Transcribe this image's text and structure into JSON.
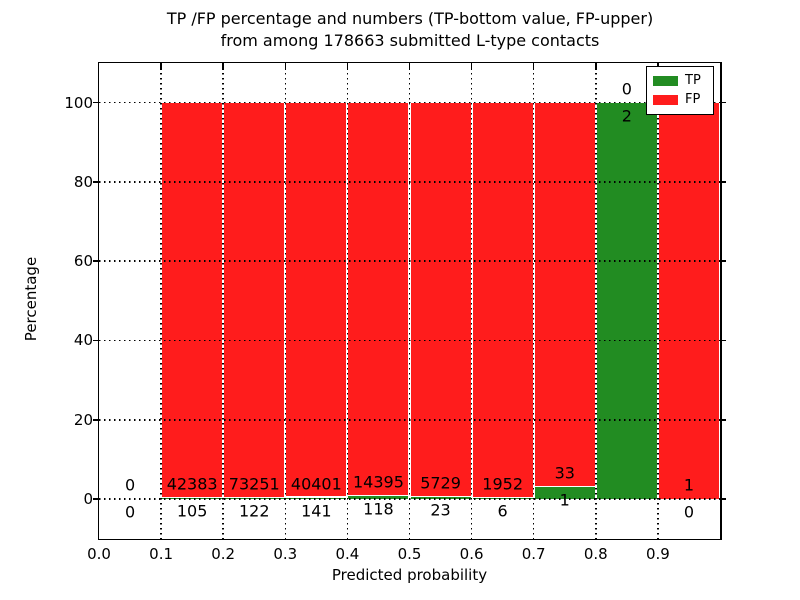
{
  "title": {
    "line1": "TP /FP percentage and numbers (TP-bottom value, FP-upper)",
    "line2": "from among 178663 submitted L-type contacts"
  },
  "chart_data": {
    "type": "bar",
    "stacked": true,
    "title": "TP /FP percentage and numbers (TP-bottom value, FP-upper) from among 178663 submitted L-type contacts",
    "xlabel": "Predicted probability",
    "ylabel": "Percentage",
    "xlim": [
      0.0,
      1.0
    ],
    "ylim": [
      -10,
      110
    ],
    "grid": true,
    "yticks": [
      "0",
      "20",
      "40",
      "60",
      "80",
      "100"
    ],
    "ytick_values": [
      0,
      20,
      40,
      60,
      80,
      100
    ],
    "xticks": [
      "0.0",
      "0.1",
      "0.2",
      "0.3",
      "0.4",
      "0.5",
      "0.6",
      "0.7",
      "0.8",
      "0.9"
    ],
    "xtick_values": [
      0.0,
      0.1,
      0.2,
      0.3,
      0.4,
      0.5,
      0.6,
      0.7,
      0.8,
      0.9
    ],
    "legend_position": "upper right",
    "legend": [
      {
        "label": "TP",
        "color": "#228c22"
      },
      {
        "label": "FP",
        "color": "#ff1c1c"
      }
    ],
    "note": "bars show TP% (green, bottom) and FP% (red, top) per probability bin; labels give raw counts (TP below boundary, FP above)",
    "bins": [
      {
        "range": [
          0.0,
          0.1
        ],
        "tp": 0,
        "fp": 0
      },
      {
        "range": [
          0.1,
          0.2
        ],
        "tp": 105,
        "fp": 42383
      },
      {
        "range": [
          0.2,
          0.3
        ],
        "tp": 122,
        "fp": 73251
      },
      {
        "range": [
          0.3,
          0.4
        ],
        "tp": 141,
        "fp": 40401
      },
      {
        "range": [
          0.4,
          0.5
        ],
        "tp": 118,
        "fp": 14395
      },
      {
        "range": [
          0.5,
          0.6
        ],
        "tp": 23,
        "fp": 5729
      },
      {
        "range": [
          0.6,
          0.7
        ],
        "tp": 6,
        "fp": 1952
      },
      {
        "range": [
          0.7,
          0.8
        ],
        "tp": 1,
        "fp": 33
      },
      {
        "range": [
          0.8,
          0.9
        ],
        "tp": 2,
        "fp": 0
      },
      {
        "range": [
          0.9,
          1.0
        ],
        "tp": 0,
        "fp": 1
      }
    ]
  },
  "colors": {
    "tp": "#228c22",
    "fp": "#ff1c1c",
    "axis": "#000000",
    "background": "#ffffff"
  }
}
